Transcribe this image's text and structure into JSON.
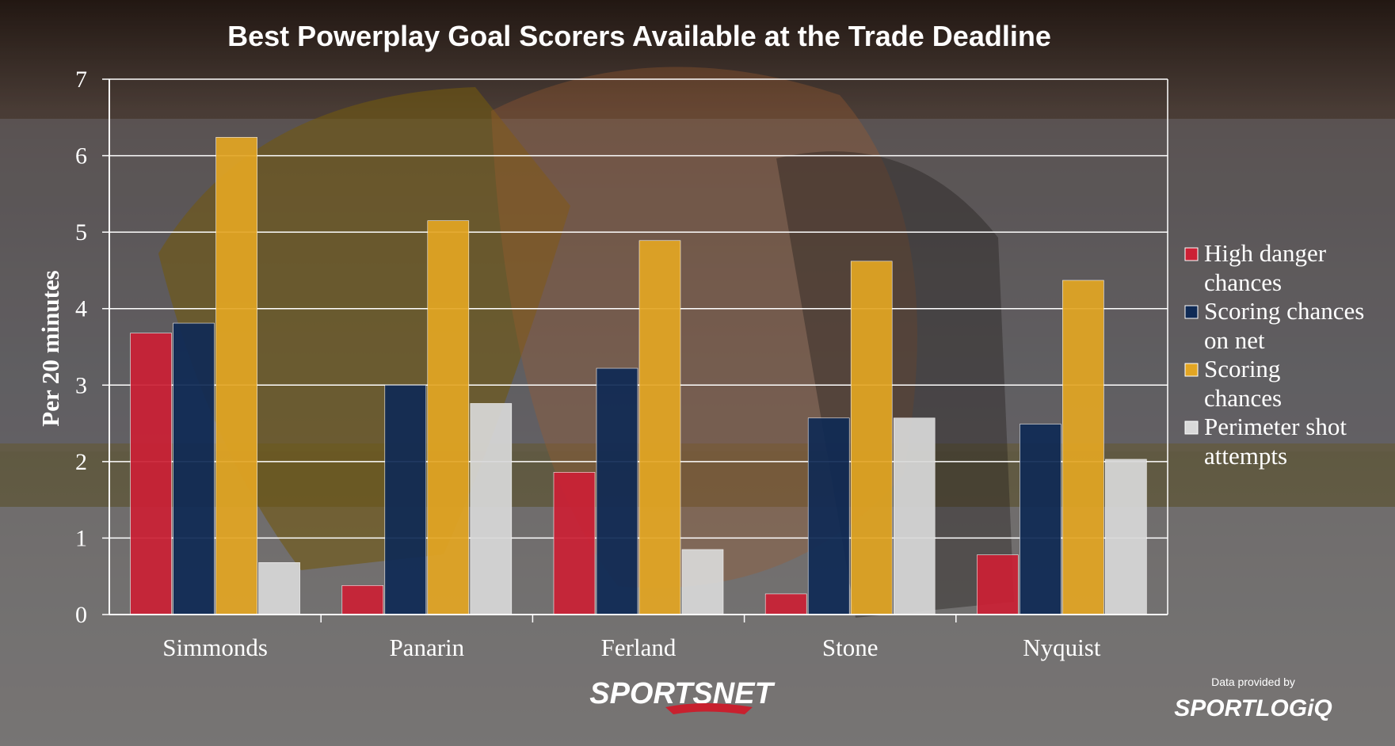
{
  "chart_data": {
    "type": "bar",
    "title": "Best Powerplay Goal Scorers Available at the Trade Deadline",
    "ylabel": "Per 20 minutes",
    "xlabel": "",
    "ylim": [
      0,
      7
    ],
    "yticks": [
      0,
      1,
      2,
      3,
      4,
      5,
      6,
      7
    ],
    "grid": true,
    "legend_position": "right",
    "categories": [
      "Simmonds",
      "Panarin",
      "Ferland",
      "Stone",
      "Nyquist"
    ],
    "series": [
      {
        "name": "High danger chances",
        "color": "#cc2035",
        "values": [
          3.68,
          0.38,
          1.86,
          0.27,
          0.78
        ]
      },
      {
        "name": "Scoring chances on net",
        "color": "#0f2a55",
        "values": [
          3.81,
          3.0,
          3.22,
          2.57,
          2.49
        ]
      },
      {
        "name": "Scoring chances",
        "color": "#e3a623",
        "values": [
          6.24,
          5.15,
          4.89,
          4.62,
          4.37
        ]
      },
      {
        "name": "Perimeter shot attempts",
        "color": "#d9d9d9",
        "values": [
          0.68,
          2.76,
          0.85,
          2.57,
          2.03
        ]
      }
    ]
  },
  "footer": {
    "brand_logo": "SPORTSNET",
    "provided_by": "Data provided by",
    "provider_logo": "SPORTLOGiQ"
  }
}
